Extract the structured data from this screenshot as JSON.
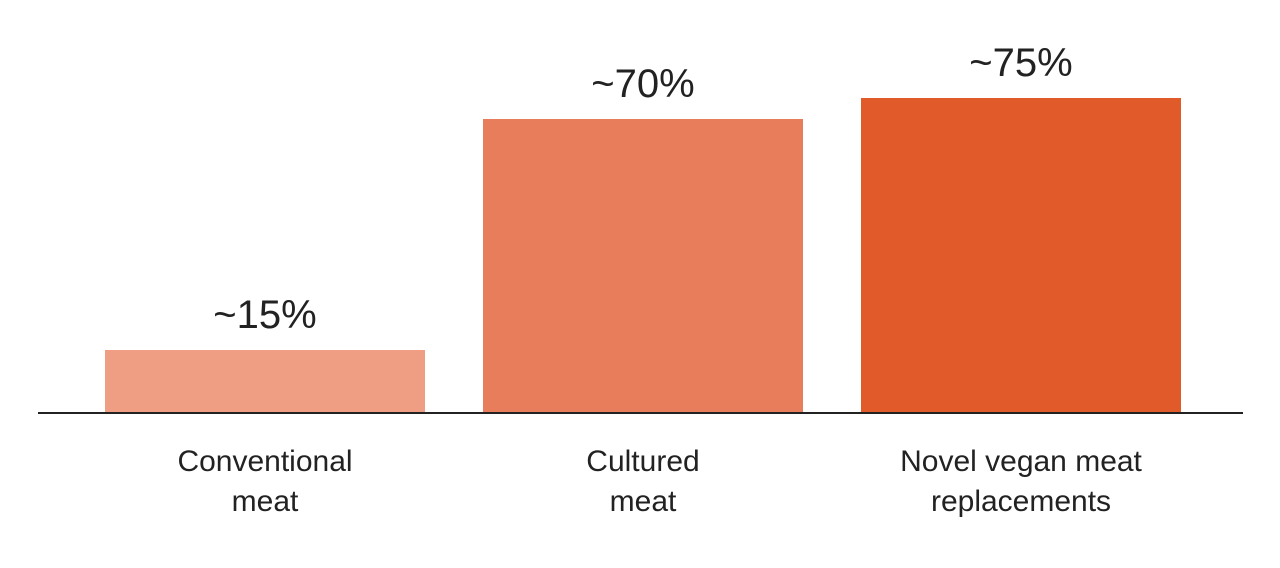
{
  "chart_data": {
    "type": "bar",
    "categories": [
      "Conventional\nmeat",
      "Cultured\nmeat",
      "Novel vegan meat\nreplacements"
    ],
    "values": [
      15,
      70,
      75
    ],
    "value_labels": [
      "~15%",
      "~70%",
      "~75%"
    ],
    "colors": [
      "#ef9e83",
      "#e87d5c",
      "#e05a2a"
    ]
  }
}
